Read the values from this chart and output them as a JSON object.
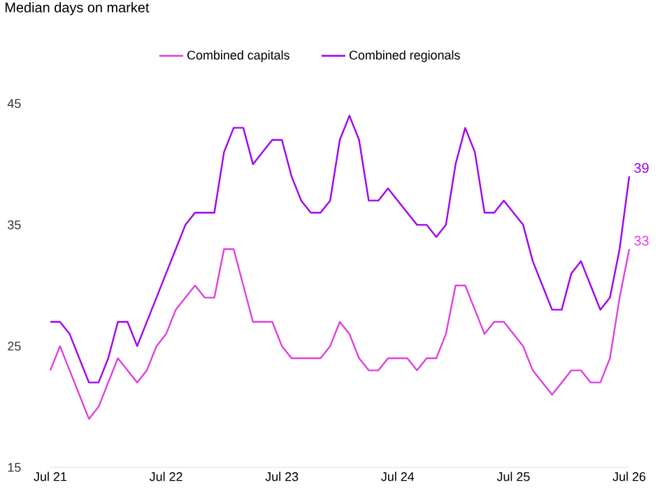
{
  "chart_data": {
    "type": "line",
    "title": "Median days on market",
    "x": [
      "2021-07",
      "2021-08",
      "2021-09",
      "2021-10",
      "2021-11",
      "2021-12",
      "2022-01",
      "2022-02",
      "2022-03",
      "2022-04",
      "2022-05",
      "2022-06",
      "2022-07",
      "2022-08",
      "2022-09",
      "2022-10",
      "2022-11",
      "2022-12",
      "2023-01",
      "2023-02",
      "2023-03",
      "2023-04",
      "2023-05",
      "2023-06",
      "2023-07",
      "2023-08",
      "2023-09",
      "2023-10",
      "2023-11",
      "2023-12",
      "2024-01",
      "2024-02",
      "2024-03",
      "2024-04",
      "2024-05",
      "2024-06",
      "2024-07",
      "2024-08",
      "2024-09",
      "2024-10",
      "2024-11",
      "2024-12",
      "2025-01",
      "2025-02",
      "2025-03",
      "2025-04",
      "2025-05",
      "2025-06",
      "2025-07",
      "2025-08",
      "2025-09",
      "2025-10",
      "2025-11",
      "2025-12",
      "2026-01",
      "2026-02",
      "2026-03",
      "2026-04",
      "2026-05",
      "2026-06",
      "2026-07"
    ],
    "series": [
      {
        "name": "Combined capitals",
        "color": "#e040e0",
        "values": [
          23,
          25,
          23,
          21,
          19,
          20,
          22,
          24,
          23,
          22,
          23,
          25,
          26,
          28,
          29,
          30,
          29,
          29,
          33,
          33,
          30,
          27,
          27,
          27,
          25,
          24,
          24,
          24,
          24,
          25,
          27,
          26,
          24,
          23,
          23,
          24,
          24,
          24,
          23,
          24,
          24,
          26,
          30,
          30,
          28,
          26,
          27,
          27,
          26,
          25,
          23,
          22,
          21,
          22,
          23,
          23,
          22,
          22,
          24,
          29,
          33
        ],
        "value_labels": [
          null,
          null,
          null,
          null,
          null,
          null,
          null,
          null,
          null,
          null,
          null,
          null,
          null,
          null,
          null,
          null,
          null,
          null,
          null,
          null,
          null,
          null,
          null,
          null,
          null,
          null,
          null,
          null,
          null,
          null,
          null,
          null,
          null,
          null,
          null,
          null,
          null,
          null,
          null,
          null,
          null,
          null,
          null,
          null,
          null,
          null,
          null,
          null,
          null,
          null,
          null,
          null,
          null,
          null,
          null,
          null,
          null,
          null,
          null,
          null,
          "33"
        ]
      },
      {
        "name": "Combined regionals",
        "color": "#a000f0",
        "values": [
          27,
          27,
          26,
          24,
          22,
          22,
          24,
          27,
          27,
          25,
          27,
          29,
          31,
          33,
          35,
          36,
          36,
          36,
          41,
          43,
          43,
          40,
          41,
          42,
          42,
          39,
          37,
          36,
          36,
          37,
          42,
          44,
          42,
          37,
          37,
          38,
          37,
          36,
          35,
          35,
          34,
          35,
          40,
          43,
          41,
          36,
          36,
          37,
          36,
          35,
          32,
          30,
          28,
          28,
          31,
          32,
          30,
          28,
          29,
          33,
          39
        ],
        "value_labels": [
          null,
          null,
          null,
          null,
          null,
          null,
          null,
          null,
          null,
          null,
          null,
          null,
          null,
          null,
          null,
          null,
          null,
          null,
          null,
          null,
          null,
          null,
          null,
          null,
          null,
          null,
          null,
          null,
          null,
          null,
          null,
          null,
          null,
          null,
          null,
          null,
          null,
          null,
          null,
          null,
          null,
          null,
          null,
          null,
          null,
          null,
          null,
          null,
          null,
          null,
          null,
          null,
          null,
          null,
          null,
          null,
          null,
          null,
          null,
          null,
          "39"
        ]
      }
    ],
    "xlim": [
      "2021-07",
      "2026-07"
    ],
    "xticks": [
      {
        "value": "2021-07",
        "label": "Jul 21"
      },
      {
        "value": "2022-07",
        "label": "Jul 22"
      },
      {
        "value": "2023-07",
        "label": "Jul 23"
      },
      {
        "value": "2024-07",
        "label": "Jul 24"
      },
      {
        "value": "2025-07",
        "label": "Jul 25"
      },
      {
        "value": "2026-07",
        "label": "Jul 26"
      }
    ],
    "ylim": [
      15,
      45
    ],
    "yticks": [
      15,
      25,
      35,
      45
    ],
    "legend": "top",
    "marker": "none",
    "line_style": "solid"
  }
}
